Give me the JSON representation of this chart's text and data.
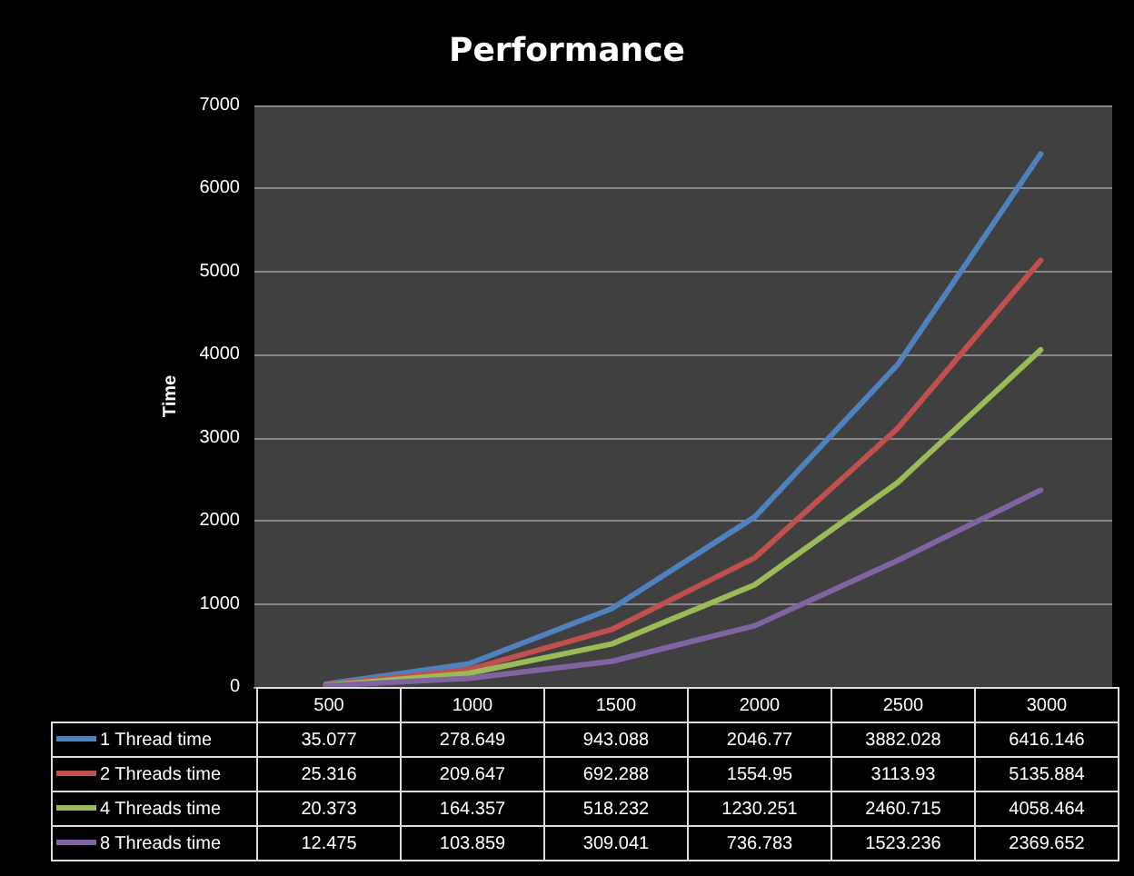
{
  "chart_data": {
    "type": "line",
    "title": "Performance",
    "ylabel": "Time",
    "categories": [
      "500",
      "1000",
      "1500",
      "2000",
      "2500",
      "3000"
    ],
    "series": [
      {
        "name": "1 Thread time",
        "color": "#4f81bd",
        "values": [
          35.077,
          278.649,
          943.088,
          2046.77,
          3882.028,
          6416.146
        ]
      },
      {
        "name": "2 Threads time",
        "color": "#c0504d",
        "values": [
          25.316,
          209.647,
          692.288,
          1554.95,
          3113.93,
          5135.884
        ]
      },
      {
        "name": "4 Threads time",
        "color": "#9bbb59",
        "values": [
          20.373,
          164.357,
          518.232,
          1230.251,
          2460.715,
          4058.464
        ]
      },
      {
        "name": "8 Threads time",
        "color": "#8064a2",
        "values": [
          12.475,
          103.859,
          309.041,
          736.783,
          1523.236,
          2369.652
        ]
      }
    ],
    "ylim": [
      0,
      7000
    ],
    "yticks": [
      0,
      1000,
      2000,
      3000,
      4000,
      5000,
      6000,
      7000
    ],
    "grid": "y",
    "legend": "bottom",
    "data_labels": true,
    "marker": "none",
    "line_style": "solid"
  }
}
